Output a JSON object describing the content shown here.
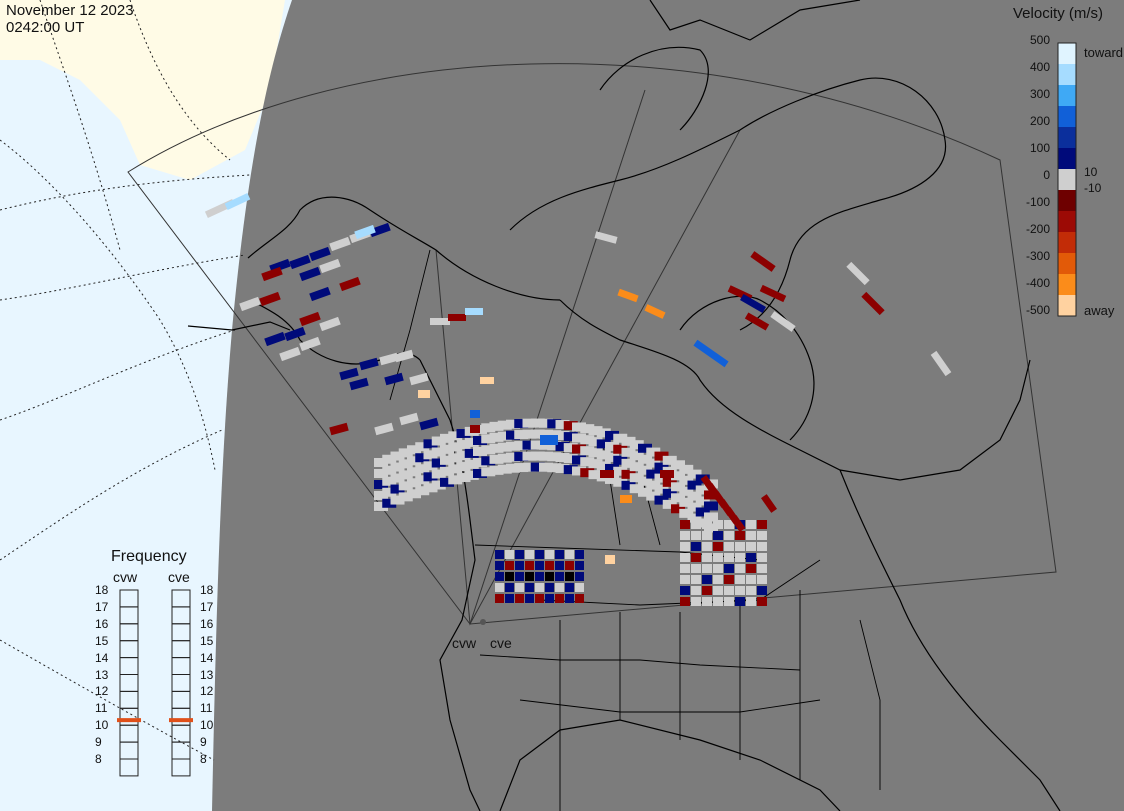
{
  "header": {
    "date": "November 12 2023",
    "time": "0242:00 UT"
  },
  "velocity_legend": {
    "title": "Velocity (m/s)",
    "ticks": [
      "500",
      "400",
      "300",
      "200",
      "100",
      "10",
      "0",
      "-10",
      "-100",
      "-200",
      "-300",
      "-400",
      "-500"
    ],
    "toward_label": "toward",
    "away_label": "away",
    "colors": [
      "#e0f4ff",
      "#a6dcff",
      "#3fa9f5",
      "#1160d8",
      "#0b2f9c",
      "#000a7a",
      "#cfcfcf",
      "#6e0000",
      "#9c0a05",
      "#c22c07",
      "#e25a08",
      "#fb8c1a",
      "#ffd2a0"
    ]
  },
  "frequency": {
    "title": "Frequency",
    "radars": [
      "cvw",
      "cve"
    ],
    "scale": [
      "18",
      "17",
      "16",
      "15",
      "14",
      "13",
      "12",
      "11",
      "10",
      "9",
      "8"
    ],
    "current_mhz": [
      10.8,
      10.8
    ],
    "marker_color": "#e0501a"
  },
  "map": {
    "radar_labels": [
      "cvw",
      "cve"
    ],
    "ocean_color": "#e8f6ff",
    "night_color": "#7c7c7c",
    "land_color": "#fffbe6"
  }
}
